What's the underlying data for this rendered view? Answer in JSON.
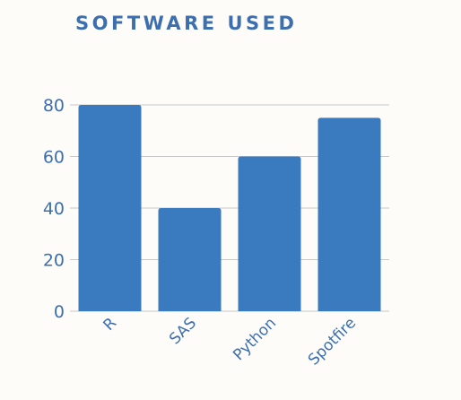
{
  "chart_data": {
    "type": "bar",
    "title": "SOFTWARE USED",
    "categories": [
      "R",
      "SAS",
      "Python",
      "Spotfire"
    ],
    "values": [
      80,
      40,
      60,
      75
    ],
    "ylim": [
      0,
      80
    ],
    "yticks": [
      0,
      20,
      40,
      60,
      80
    ],
    "grid": true,
    "bar_color": "#3a7bbf",
    "text_color": "#3d6faf",
    "grid_color": "#c8c8c8"
  }
}
